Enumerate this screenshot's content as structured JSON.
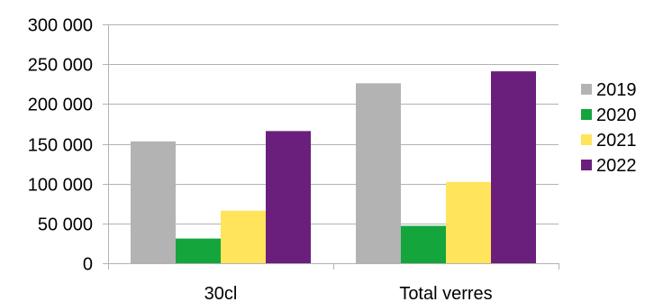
{
  "chart_data": {
    "type": "bar",
    "categories": [
      "30cl",
      "Total verres"
    ],
    "series": [
      {
        "name": "2019",
        "color": "#b3b3b3",
        "values": [
          153000,
          226000
        ]
      },
      {
        "name": "2020",
        "color": "#14a53c",
        "values": [
          31000,
          47000
        ]
      },
      {
        "name": "2021",
        "color": "#ffe45c",
        "values": [
          66000,
          102000
        ]
      },
      {
        "name": "2022",
        "color": "#6b1f7c",
        "values": [
          166000,
          241000
        ]
      }
    ],
    "y_ticks": [
      {
        "value": 0,
        "label": "0"
      },
      {
        "value": 50000,
        "label": "50 000"
      },
      {
        "value": 100000,
        "label": "100 000"
      },
      {
        "value": 150000,
        "label": "150 000"
      },
      {
        "value": 200000,
        "label": "200 000"
      },
      {
        "value": 250000,
        "label": "250 000"
      },
      {
        "value": 300000,
        "label": "300 000"
      }
    ],
    "ylim": [
      0,
      300000
    ],
    "grid": true,
    "legend_position": "right",
    "title": "",
    "xlabel": "",
    "ylabel": ""
  }
}
